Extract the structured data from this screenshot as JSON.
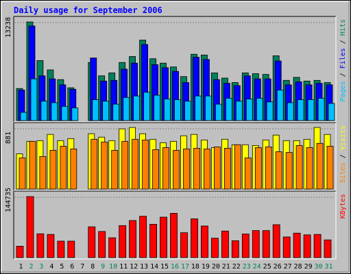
{
  "chart_data": {
    "type": "bar",
    "title": "Daily usage for September 2006",
    "colors": {
      "background": "#c0c0c0",
      "plot_background": "#c0c0c0",
      "title": "#0000ff",
      "hits": "#00805c",
      "files": "#0000ff",
      "pages": "#00c0ff",
      "visits": "#ffff00",
      "sites": "#ff8000",
      "kbytes": "#ff0000",
      "weekend_label": "#00805c",
      "weekday_label": "#000000"
    },
    "categories": [
      "1",
      "2",
      "3",
      "4",
      "5",
      "6",
      "7",
      "8",
      "9",
      "10",
      "11",
      "12",
      "13",
      "14",
      "15",
      "16",
      "17",
      "18",
      "19",
      "20",
      "21",
      "22",
      "23",
      "24",
      "25",
      "26",
      "27",
      "28",
      "29",
      "30",
      "31"
    ],
    "weekend_days": [
      "2",
      "3",
      "9",
      "10",
      "16",
      "17",
      "23",
      "24",
      "30",
      "31"
    ],
    "panels": [
      {
        "id": "top",
        "ymax_label": "13238",
        "ylim": [
          0,
          13238
        ],
        "legend": [
          {
            "text": "Pages",
            "color": "#00c0ff"
          },
          {
            "text": " / ",
            "color": "#000000"
          },
          {
            "text": "Files",
            "color": "#0000ff"
          },
          {
            "text": " / ",
            "color": "#000000"
          },
          {
            "text": "Hits",
            "color": "#00805c"
          }
        ],
        "series": [
          {
            "name": "Hits",
            "color": "#00805c",
            "values": [
              4300,
              13238,
              8050,
              6800,
              5500,
              4400,
              0,
              7800,
              6000,
              6400,
              7800,
              8600,
              10800,
              8300,
              7700,
              7200,
              5900,
              8900,
              8800,
              6400,
              5700,
              5100,
              6400,
              6300,
              6200,
              8700,
              5400,
              5800,
              5300,
              5400,
              5100
            ]
          },
          {
            "name": "Files",
            "color": "#0000ff",
            "values": [
              4100,
              12700,
              6000,
              5600,
              4800,
              4200,
              0,
              8400,
              5300,
              5400,
              6900,
              7700,
              10200,
              7500,
              7100,
              6600,
              5100,
              8500,
              8200,
              5500,
              5000,
              4700,
              6000,
              5600,
              5600,
              8000,
              4800,
              5200,
              4800,
              5000,
              4800
            ]
          },
          {
            "name": "Pages",
            "color": "#00c0ff",
            "values": [
              1100,
              5600,
              2600,
              2400,
              1900,
              1700,
              0,
              2800,
              2600,
              2200,
              3100,
              3300,
              3800,
              3400,
              2900,
              2800,
              2600,
              3300,
              3300,
              2200,
              3000,
              2600,
              2900,
              3000,
              2500,
              4100,
              2400,
              2800,
              2800,
              3000,
              2300
            ]
          }
        ]
      },
      {
        "id": "middle",
        "ymax_label": "881",
        "ylim": [
          0,
          881
        ],
        "legend": [
          {
            "text": "Sites",
            "color": "#ff8000"
          },
          {
            "text": " / ",
            "color": "#000000"
          },
          {
            "text": "Visits",
            "color": "#ffff00"
          }
        ],
        "series": [
          {
            "name": "Visits",
            "color": "#ffff00",
            "values": [
              510,
              690,
              700,
              790,
              700,
              730,
              0,
              800,
              750,
              700,
              870,
              890,
              800,
              720,
              670,
              690,
              770,
              790,
              710,
              600,
              720,
              640,
              640,
              630,
              710,
              780,
              700,
              700,
              720,
              890,
              790
            ]
          },
          {
            "name": "Sites",
            "color": "#ff8000",
            "values": [
              450,
              690,
              470,
              560,
              620,
              580,
              0,
              720,
              680,
              560,
              690,
              720,
              710,
              570,
              600,
              560,
              580,
              590,
              580,
              610,
              590,
              640,
              450,
              600,
              610,
              540,
              530,
              630,
              600,
              660,
              620
            ]
          }
        ]
      },
      {
        "id": "bottom",
        "ymax_label": "144735",
        "ylim": [
          0,
          144735
        ],
        "legend": [
          {
            "text": "KBytes",
            "color": "#ff0000"
          }
        ],
        "series": [
          {
            "name": "KBytes",
            "color": "#ff0000",
            "values": [
              27000,
              144735,
              56500,
              55000,
              39000,
              39000,
              0,
              73000,
              62000,
              47000,
              76000,
              88000,
              98000,
              79000,
              96000,
              105000,
              59000,
              92000,
              75000,
              46000,
              63000,
              40000,
              56000,
              64000,
              64000,
              78000,
              49000,
              58000,
              54000,
              55000,
              42000
            ]
          }
        ]
      }
    ]
  }
}
